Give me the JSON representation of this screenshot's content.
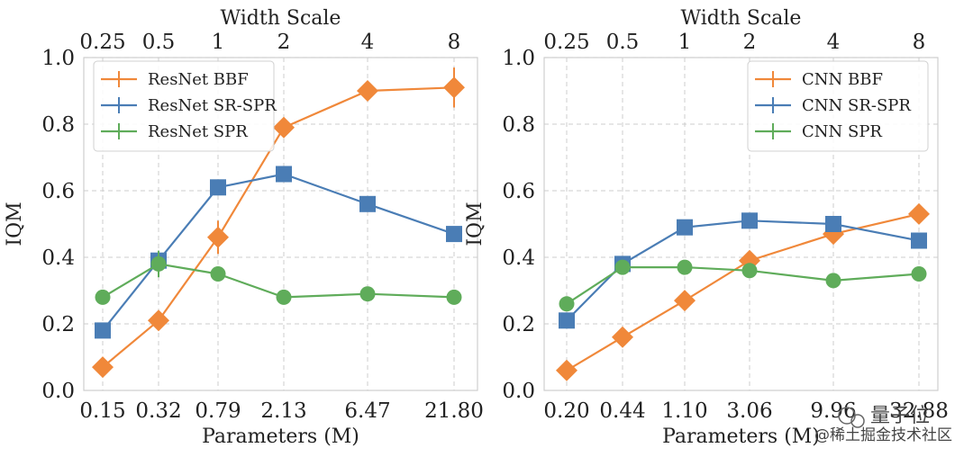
{
  "chart_data": [
    {
      "type": "line",
      "top_axis": {
        "label": "Width Scale",
        "tick_labels": [
          "0.25",
          "0.5",
          "1",
          "2",
          "4",
          "8"
        ]
      },
      "xlabel": "Parameters (M)",
      "ylabel": "IQM",
      "categories": [
        "0.15",
        "0.32",
        "0.79",
        "2.13",
        "6.47",
        "21.80"
      ],
      "ylim": [
        0,
        1
      ],
      "yticks": [
        "0.0",
        "0.2",
        "0.4",
        "0.6",
        "0.8",
        "1.0"
      ],
      "grid": true,
      "legend_position": "top-left",
      "series": [
        {
          "name": "ResNet BBF",
          "color": "#f0883a",
          "marker": "diamond",
          "values": [
            0.07,
            0.21,
            0.46,
            0.79,
            0.9,
            0.91
          ],
          "errors": [
            0.0,
            0.01,
            0.05,
            0.03,
            0.02,
            0.06
          ]
        },
        {
          "name": "ResNet SR-SPR",
          "color": "#4a7db5",
          "marker": "square",
          "values": [
            0.18,
            0.39,
            0.61,
            0.65,
            0.56,
            0.47
          ],
          "errors": [
            0.0,
            0.02,
            0.01,
            0.01,
            0.01,
            0.01
          ]
        },
        {
          "name": "ResNet SPR",
          "color": "#5fac5a",
          "marker": "circle",
          "values": [
            0.28,
            0.38,
            0.35,
            0.28,
            0.29,
            0.28
          ],
          "errors": [
            0.0,
            0.04,
            0.02,
            0.01,
            0.01,
            0.01
          ]
        }
      ]
    },
    {
      "type": "line",
      "top_axis": {
        "label": "Width Scale",
        "tick_labels": [
          "0.25",
          "0.5",
          "1",
          "2",
          "4",
          "8"
        ]
      },
      "xlabel": "Parameters (M)",
      "ylabel": "IQM",
      "categories": [
        "0.20",
        "0.44",
        "1.10",
        "3.06",
        "9.96",
        "32.88"
      ],
      "ylim": [
        0,
        1
      ],
      "yticks": [
        "0.0",
        "0.2",
        "0.4",
        "0.6",
        "0.8",
        "1.0"
      ],
      "grid": true,
      "legend_position": "top-right",
      "series": [
        {
          "name": "CNN BBF",
          "color": "#f0883a",
          "marker": "diamond",
          "values": [
            0.06,
            0.16,
            0.27,
            0.39,
            0.47,
            0.53
          ],
          "errors": [
            0.0,
            0.01,
            0.01,
            0.03,
            0.03,
            0.02
          ]
        },
        {
          "name": "CNN SR-SPR",
          "color": "#4a7db5",
          "marker": "square",
          "values": [
            0.21,
            0.38,
            0.49,
            0.51,
            0.5,
            0.45
          ],
          "errors": [
            0.0,
            0.02,
            0.02,
            0.01,
            0.01,
            0.01
          ]
        },
        {
          "name": "CNN SPR",
          "color": "#5fac5a",
          "marker": "circle",
          "values": [
            0.26,
            0.37,
            0.37,
            0.36,
            0.33,
            0.35
          ],
          "errors": [
            0.0,
            0.02,
            0.01,
            0.01,
            0.01,
            0.01
          ]
        }
      ]
    }
  ],
  "watermark": {
    "line1": "量子位",
    "line2": "@稀土掘金技术社区"
  }
}
